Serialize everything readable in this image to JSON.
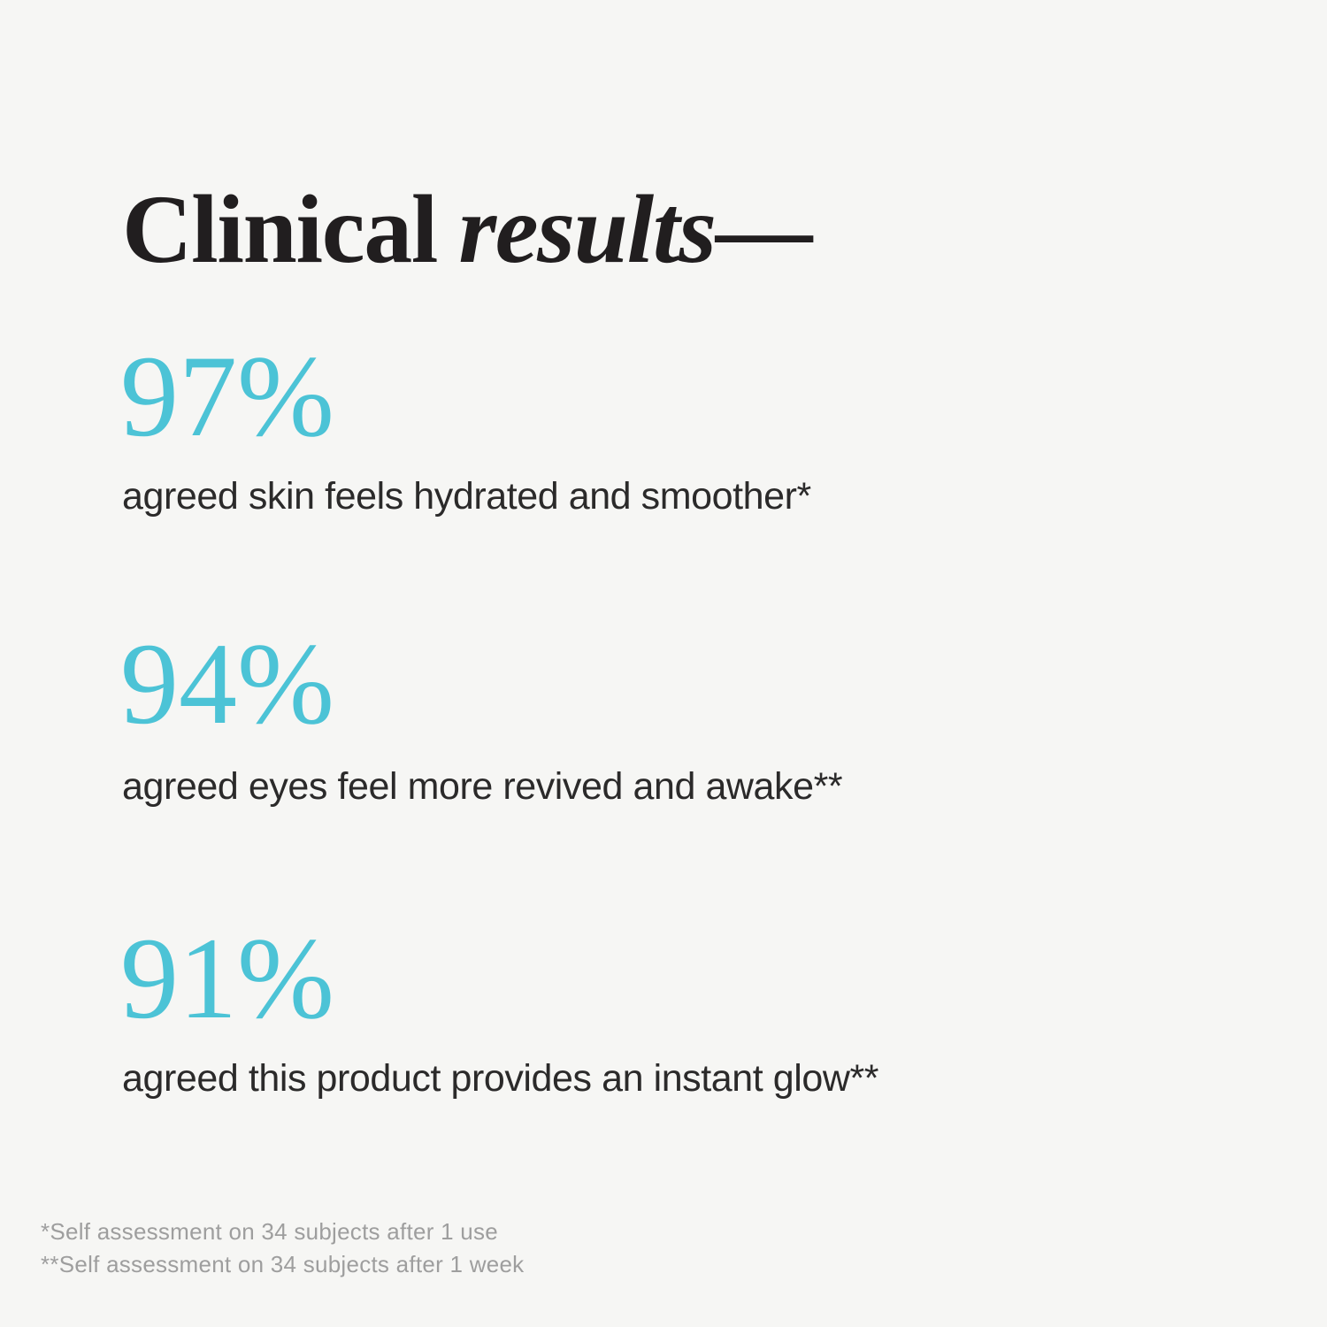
{
  "colors": {
    "background": "#f6f6f4",
    "accent_teal": "#4cc3d6",
    "title_ink": "#211e1f",
    "body_ink": "#2b2a2a",
    "footnote_gray": "#9e9e9e"
  },
  "title": {
    "regular": "Clinical",
    "italic": "results",
    "dash": "—"
  },
  "stats": [
    {
      "value": "97%",
      "caption": "agreed skin feels hydrated and smoother*"
    },
    {
      "value": "94%",
      "caption": "agreed eyes feel more revived and awake**"
    },
    {
      "value": "91%",
      "caption": "agreed this product provides an instant glow**"
    }
  ],
  "footnotes": [
    "*Self assessment on 34 subjects after 1 use",
    "**Self assessment on 34 subjects after 1 week"
  ]
}
